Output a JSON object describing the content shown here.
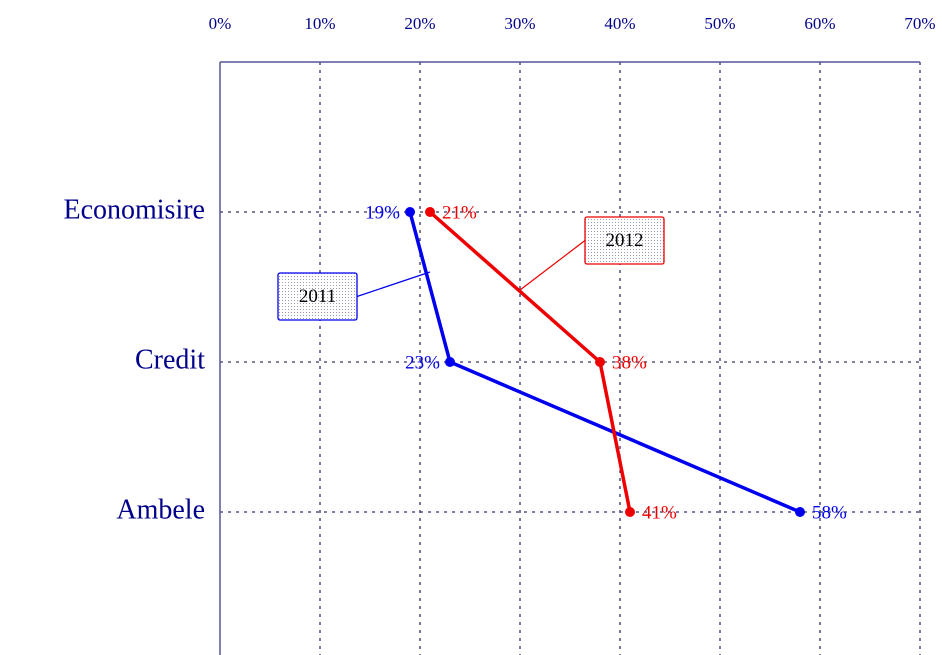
{
  "chart_data": {
    "type": "line",
    "categories": [
      "Economisire",
      "Credit",
      "Ambele"
    ],
    "series": [
      {
        "name": "2011",
        "color": "#0000ee",
        "values": [
          19,
          23,
          58
        ],
        "value_labels": [
          "19%",
          "23%",
          "58%"
        ]
      },
      {
        "name": "2012",
        "color": "#ee0000",
        "values": [
          21,
          38,
          41
        ],
        "value_labels": [
          "21%",
          "38%",
          "41%"
        ]
      }
    ],
    "xlim": [
      0,
      70
    ],
    "xticks": [
      {
        "value": 0,
        "label": "0%"
      },
      {
        "value": 10,
        "label": "10%"
      },
      {
        "value": 20,
        "label": "20%"
      },
      {
        "value": 30,
        "label": "30%"
      },
      {
        "value": 40,
        "label": "40%"
      },
      {
        "value": 50,
        "label": "50%"
      },
      {
        "value": 60,
        "label": "60%"
      },
      {
        "value": 70,
        "label": "70%"
      }
    ],
    "grid": true
  }
}
